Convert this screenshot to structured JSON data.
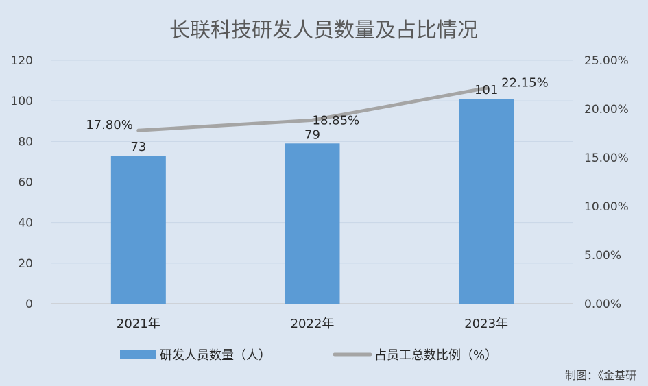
{
  "chart_data": {
    "type": "bar",
    "title": "长联科技研发人员数量及占比情况",
    "categories": [
      "2021年",
      "2022年",
      "2023年"
    ],
    "series": [
      {
        "name": "研发人员数量（人）",
        "type": "bar",
        "axis": "left",
        "values": [
          73,
          79,
          101
        ],
        "labels": [
          "73",
          "79",
          "101"
        ],
        "color": "#5b9bd5"
      },
      {
        "name": "占员工总数比例（%）",
        "type": "line",
        "axis": "right",
        "values": [
          17.8,
          18.85,
          22.15
        ],
        "labels": [
          "17.80%",
          "18.85%",
          "22.15%"
        ],
        "color": "#a5a5a5"
      }
    ],
    "y_left": {
      "min": 0,
      "max": 120,
      "ticks": [
        "0",
        "20",
        "40",
        "60",
        "80",
        "100",
        "120"
      ]
    },
    "y_right": {
      "min": 0,
      "max": 25,
      "ticks": [
        "0.00%",
        "5.00%",
        "10.00%",
        "15.00%",
        "20.00%",
        "25.00%"
      ]
    },
    "grid": true,
    "legend_position": "bottom"
  },
  "credit": "制图：《金基研"
}
